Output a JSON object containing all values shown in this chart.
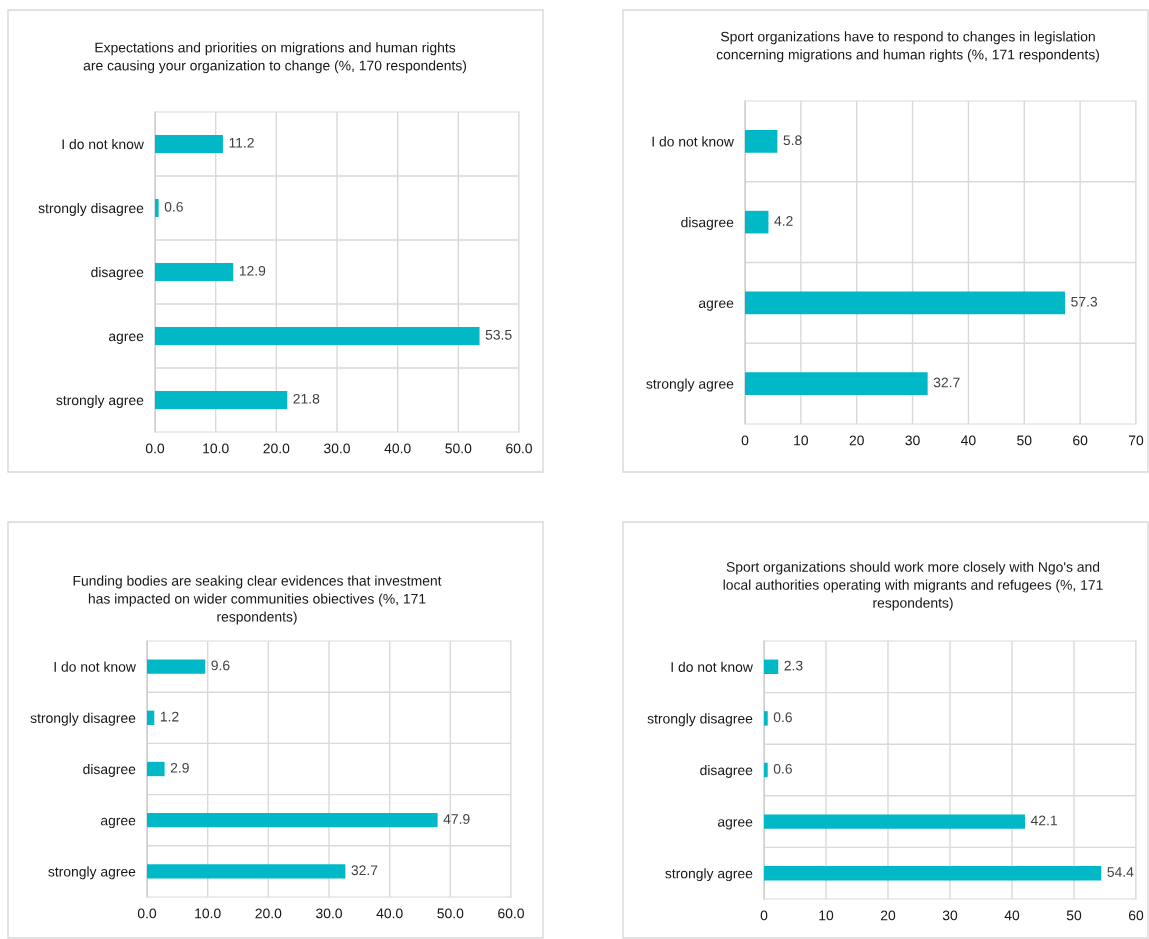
{
  "chart_data": [
    {
      "type": "bar",
      "orientation": "horizontal",
      "title": "Expectations and priorities on migrations and human rights\nare causing your organization to change (%, 170 respondents)",
      "categories": [
        "I do not know",
        "strongly disagree",
        "disagree",
        "agree",
        "strongly agree"
      ],
      "values": [
        11.2,
        0.6,
        12.9,
        53.5,
        21.8
      ],
      "color": "#00b8c6",
      "xlim": [
        0,
        60
      ],
      "xticks": [
        {
          "value": 0,
          "label": "0.0"
        },
        {
          "value": 10,
          "label": "10.0"
        },
        {
          "value": 20,
          "label": "20.0"
        },
        {
          "value": 30,
          "label": "30.0"
        },
        {
          "value": 40,
          "label": "40.0"
        },
        {
          "value": 50,
          "label": "50.0"
        },
        {
          "value": 60,
          "label": "60.0"
        }
      ],
      "grid": true,
      "data_labels": true
    },
    {
      "type": "bar",
      "orientation": "horizontal",
      "title": "Sport organizations have to respond to changes in legislation\nconcerning migrations and human rights (%, 171 respondents)",
      "categories": [
        "I do not know",
        "disagree",
        "agree",
        "strongly agree"
      ],
      "values": [
        5.8,
        4.2,
        57.3,
        32.7
      ],
      "color": "#00b8c6",
      "xlim": [
        0,
        70
      ],
      "xticks": [
        0,
        10,
        20,
        30,
        40,
        50,
        60,
        70
      ],
      "grid": true,
      "data_labels": true
    },
    {
      "type": "bar",
      "orientation": "horizontal",
      "title": "Funding bodies are seaking clear evidences that investment\nhas impacted on wider communities obiectives (%, 171\nrespondents)",
      "categories": [
        "I do not know",
        "strongly disagree",
        "disagree",
        "agree",
        "strongly agree"
      ],
      "values": [
        9.6,
        1.2,
        2.9,
        47.9,
        32.7
      ],
      "color": "#00b8c6",
      "xlim": [
        0,
        60
      ],
      "xticks": [
        {
          "value": 0,
          "label": "0.0"
        },
        {
          "value": 10,
          "label": "10.0"
        },
        {
          "value": 20,
          "label": "20.0"
        },
        {
          "value": 30,
          "label": "30.0"
        },
        {
          "value": 40,
          "label": "40.0"
        },
        {
          "value": 50,
          "label": "50.0"
        },
        {
          "value": 60,
          "label": "60.0"
        }
      ],
      "grid": true,
      "data_labels": true
    },
    {
      "type": "bar",
      "orientation": "horizontal",
      "title": "Sport organizations should work more closely with Ngo's and\nlocal authorities operating with migrants and refugees (%, 171\nrespondents)",
      "categories": [
        "I do not know",
        "strongly disagree",
        "disagree",
        "agree",
        "strongly agree"
      ],
      "values": [
        2.3,
        0.6,
        0.6,
        42.1,
        54.4
      ],
      "color": "#00b8c6",
      "xlim": [
        0,
        60
      ],
      "xticks": [
        0,
        10,
        20,
        30,
        40,
        50,
        60
      ],
      "grid": true,
      "data_labels": true
    }
  ]
}
